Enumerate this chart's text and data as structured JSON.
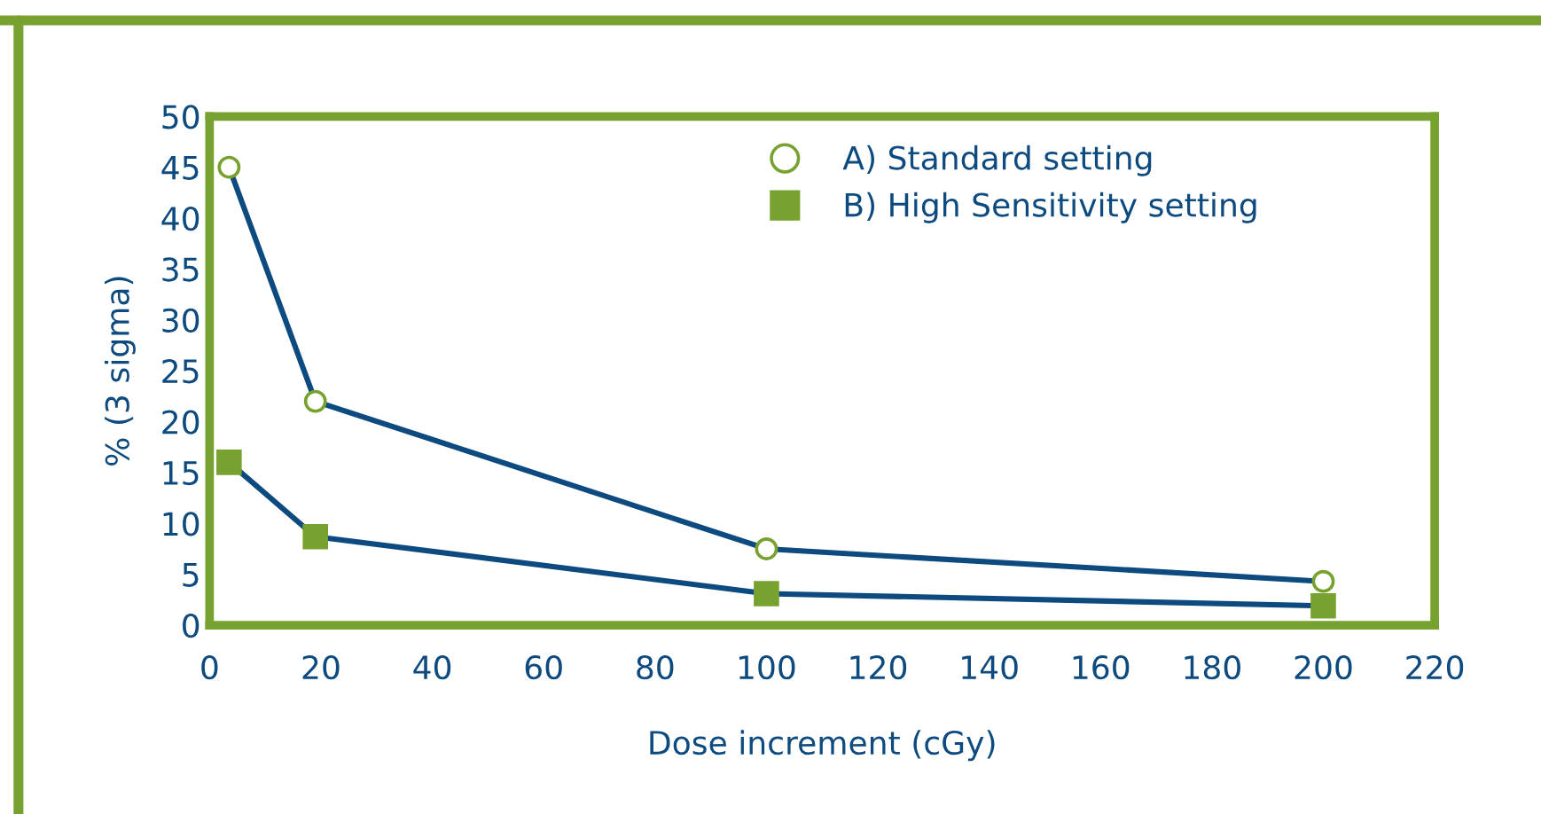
{
  "chart_data": {
    "type": "line",
    "xlabel": "Dose increment (cGy)",
    "ylabel": "% (3 sigma)",
    "xlim": [
      0,
      220
    ],
    "xticks": [
      0,
      20,
      40,
      60,
      80,
      100,
      120,
      140,
      160,
      180,
      200,
      220
    ],
    "ylim": [
      0,
      50
    ],
    "yticks": [
      0,
      5,
      10,
      15,
      20,
      25,
      30,
      35,
      40,
      45,
      50
    ],
    "grid": false,
    "legend": "top right",
    "line_style": "solid",
    "series": [
      {
        "name": "A) Standard setting",
        "color": "#78a22f",
        "marker": "circle",
        "x": [
          3.5,
          19,
          100,
          200
        ],
        "values": [
          45,
          22,
          7.5,
          4.3
        ]
      },
      {
        "name": "B) High Sensitivity setting",
        "color": "#78a22f",
        "marker": "square",
        "x": [
          3.5,
          19,
          100,
          200
        ],
        "values": [
          16,
          8.7,
          3.1,
          1.9
        ]
      }
    ]
  }
}
